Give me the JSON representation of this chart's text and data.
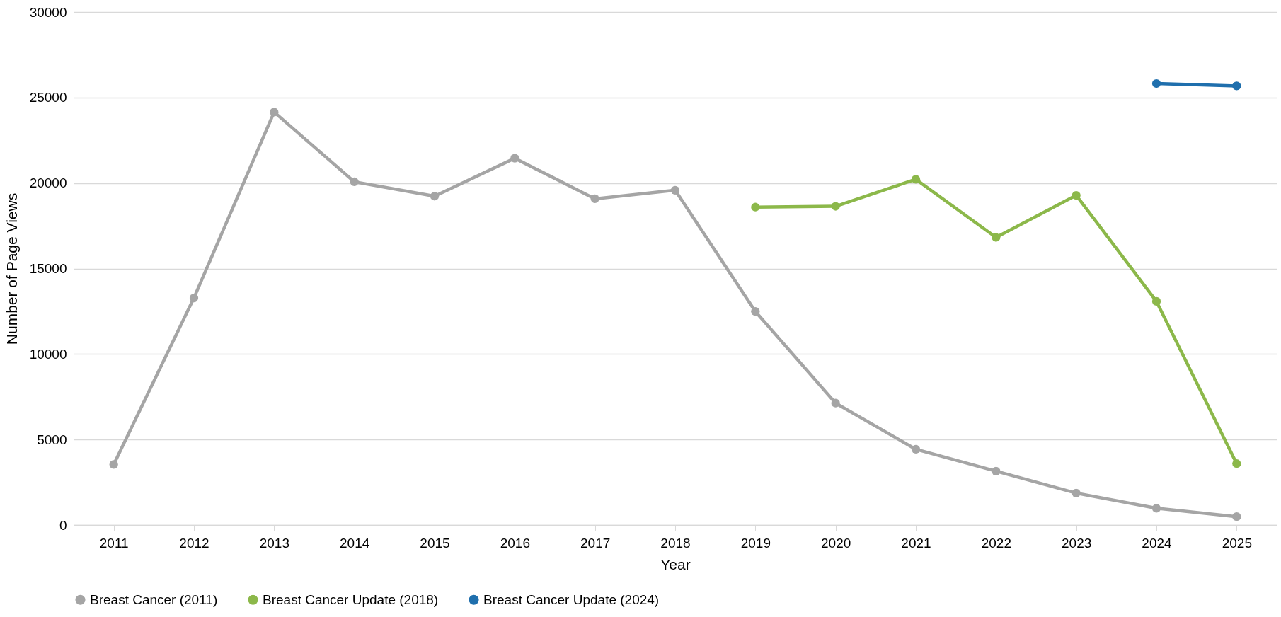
{
  "chart_data": {
    "type": "line",
    "xlabel": "Year",
    "ylabel": "Number of Page Views",
    "categories": [
      "2011",
      "2012",
      "2013",
      "2014",
      "2015",
      "2016",
      "2017",
      "2018",
      "2019",
      "2020",
      "2021",
      "2022",
      "2023",
      "2024",
      "2025"
    ],
    "series": [
      {
        "name": "Breast Cancer (2011)",
        "color": "#a5a5a5",
        "values": [
          3540,
          13280,
          24150,
          20070,
          19230,
          21450,
          19080,
          19580,
          12490,
          7130,
          4430,
          3150,
          1870,
          980,
          490
        ]
      },
      {
        "name": "Breast Cancer Update (2018)",
        "color": "#8cb84a",
        "values": [
          null,
          null,
          null,
          null,
          null,
          null,
          null,
          null,
          18590,
          18640,
          20220,
          16820,
          19280,
          13080,
          3590
        ]
      },
      {
        "name": "Breast Cancer Update (2024)",
        "color": "#1f6fad",
        "values": [
          null,
          null,
          null,
          null,
          null,
          null,
          null,
          null,
          null,
          null,
          null,
          null,
          null,
          25820,
          25680
        ]
      }
    ],
    "ylim": [
      0,
      30000
    ],
    "yticks": [
      0,
      5000,
      10000,
      15000,
      20000,
      25000,
      30000
    ],
    "grid": "y",
    "legend": "bottom",
    "marker": "circle",
    "line_style": "solid"
  }
}
